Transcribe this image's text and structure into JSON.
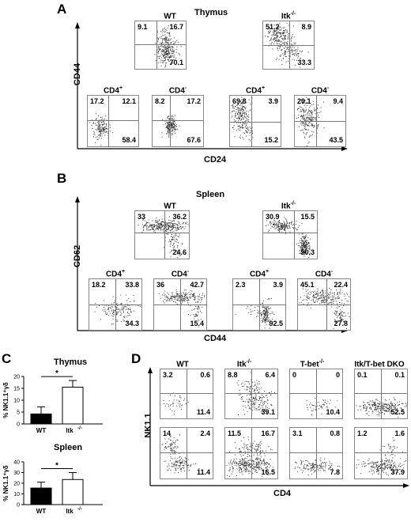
{
  "panelA": {
    "letter": "A",
    "title": "Thymus",
    "yaxis": "CD44",
    "xaxis": "CD24",
    "plots": [
      {
        "title": "WT",
        "sup": "",
        "q": [
          "9.1",
          "16.7",
          "70.1"
        ]
      },
      {
        "title": "Itk",
        "sup": "-/-",
        "q": [
          "51.2",
          "8.9",
          "33.3"
        ]
      },
      {
        "title": "CD4",
        "sup": "+",
        "q": [
          "17.2",
          "12.1",
          "58.4"
        ]
      },
      {
        "title": "CD4",
        "sup": "-",
        "q": [
          "8.2",
          "17.2",
          "67.6"
        ]
      },
      {
        "title": "CD4",
        "sup": "+",
        "q": [
          "69.8",
          "3.9",
          "15.2"
        ]
      },
      {
        "title": "CD4",
        "sup": "-",
        "q": [
          "29.1",
          "9.4",
          "43.5"
        ]
      }
    ]
  },
  "panelB": {
    "letter": "B",
    "title": "Spleen",
    "yaxis": "CD62",
    "xaxis": "CD44",
    "plots": [
      {
        "title": "WT",
        "sup": "",
        "q": [
          "33",
          "36.2",
          "24.6"
        ]
      },
      {
        "title": "Itk",
        "sup": "-/-",
        "q": [
          "30.9",
          "15.5",
          "50.3"
        ]
      },
      {
        "title": "CD4",
        "sup": "+",
        "q": [
          "18.2",
          "33.8",
          "34.3"
        ]
      },
      {
        "title": "CD4",
        "sup": "-",
        "q": [
          "36",
          "42.7",
          "15.4"
        ]
      },
      {
        "title": "CD4",
        "sup": "+",
        "q": [
          "2.3",
          "3.9",
          "92.5"
        ]
      },
      {
        "title": "CD4",
        "sup": "-",
        "q": [
          "45.1",
          "22.4",
          "27.8"
        ]
      }
    ]
  },
  "panelC": {
    "letter": "C",
    "charts": [
      {
        "title": "Thymus",
        "ylabel": "% NK1.1⁺γδ",
        "ticks": [
          "0",
          "5",
          "10",
          "15",
          "20"
        ],
        "ymax": 20,
        "categories": [
          "WT",
          "Itk-/-"
        ],
        "values": [
          4.2,
          15.5
        ],
        "errors": [
          3.0,
          2.8
        ],
        "sig": "*"
      },
      {
        "title": "Spleen",
        "ylabel": "% NK1.1⁺γδ",
        "ticks": [
          "0",
          "10",
          "20",
          "30",
          "40"
        ],
        "ymax": 40,
        "categories": [
          "WT",
          "Itk-/-"
        ],
        "values": [
          15.5,
          23.5
        ],
        "errors": [
          5.5,
          6.5
        ],
        "sig": "*"
      }
    ],
    "cat_wt": "WT",
    "cat_itk": "Itk",
    "cat_itk_sup": "-/-"
  },
  "panelD": {
    "letter": "D",
    "yaxis": "NK1.1",
    "xaxis": "CD4",
    "columns": [
      {
        "title": "WT",
        "sup": ""
      },
      {
        "title": "Itk",
        "sup": "-/-"
      },
      {
        "title": "T-bet",
        "sup": "-/-"
      },
      {
        "title": "Itk/T-bet DKO",
        "sup": ""
      }
    ],
    "rows": [
      [
        [
          "3.2",
          "0.6",
          "11.4"
        ],
        [
          "8.8",
          "6.4",
          "39.1"
        ],
        [
          "0",
          "0",
          "10.4"
        ],
        [
          "0.1",
          "0.1",
          "52.5"
        ]
      ],
      [
        [
          "14",
          "2.4",
          "11.4"
        ],
        [
          "11.5",
          "16.7",
          "16.5"
        ],
        [
          "3.1",
          "0.8",
          "7.8"
        ],
        [
          "1.2",
          "1.6",
          "37.9"
        ]
      ]
    ]
  }
}
